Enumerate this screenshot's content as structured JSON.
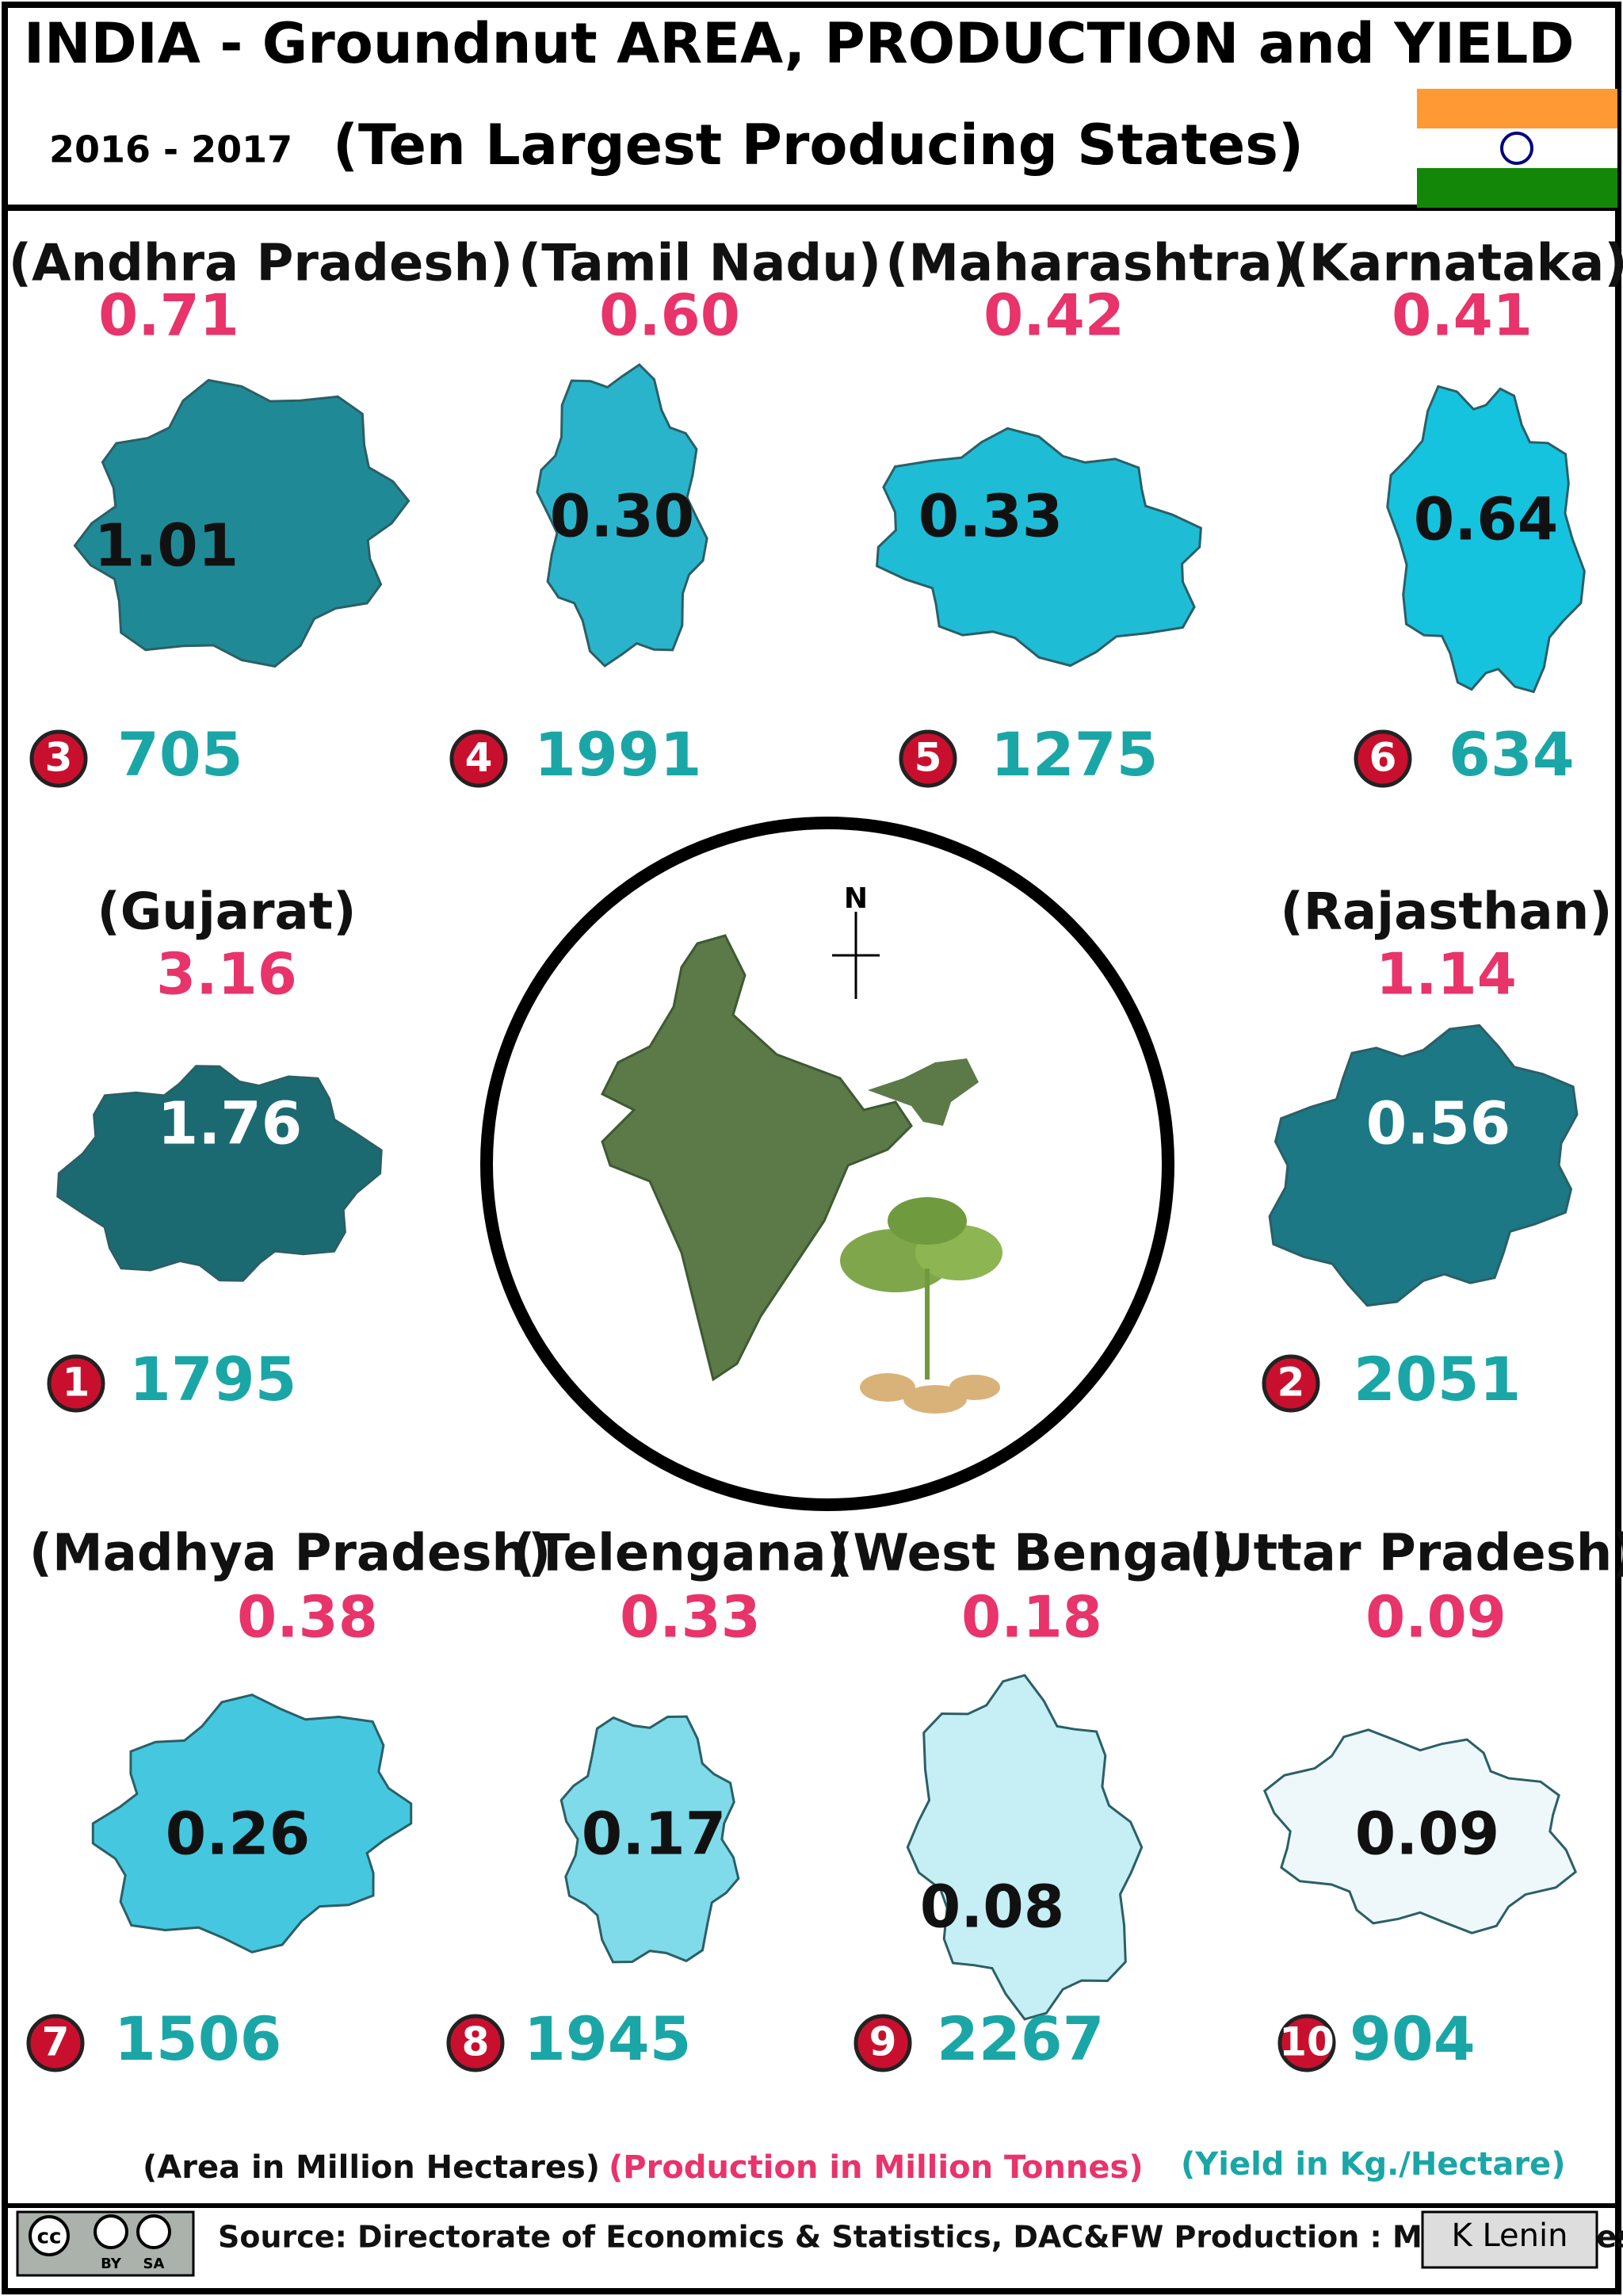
{
  "header": {
    "title": "INDIA - Groundnut   AREA, PRODUCTION and  YIELD",
    "period": "2016 - 2017",
    "subtitle": "(Ten Largest Producing States)"
  },
  "states": [
    {
      "name": "(Andhra Pradesh)",
      "production": "0.71",
      "area": "1.01",
      "rank": "3",
      "yield": "705"
    },
    {
      "name": "(Tamil Nadu)",
      "production": "0.60",
      "area": "0.30",
      "rank": "4",
      "yield": "1991"
    },
    {
      "name": "(Maharashtra)",
      "production": "0.42",
      "area": "0.33",
      "rank": "5",
      "yield": "1275"
    },
    {
      "name": "(Karnataka)",
      "production": "0.41",
      "area": "0.64",
      "rank": "6",
      "yield": "634"
    },
    {
      "name": "(Gujarat)",
      "production": "3.16",
      "area": "1.76",
      "rank": "1",
      "yield": "1795"
    },
    {
      "name": "(Rajasthan)",
      "production": "1.14",
      "area": "0.56",
      "rank": "2",
      "yield": "2051"
    },
    {
      "name": "(Madhya Pradesh)",
      "production": "0.38",
      "area": "0.26",
      "rank": "7",
      "yield": "1506"
    },
    {
      "name": "(Telengana)",
      "production": "0.33",
      "area": "0.17",
      "rank": "8",
      "yield": "1945"
    },
    {
      "name": "(West Bengal)",
      "production": "0.18",
      "area": "0.08",
      "rank": "9",
      "yield": "2267"
    },
    {
      "name": "(Uttar  Pradesh)",
      "production": "0.09",
      "area": "0.09",
      "rank": "10",
      "yield": "904"
    }
  ],
  "compass": "N",
  "legend": {
    "area": "(Area in Million Hectares)",
    "production": "(Production in Million Tonnes)",
    "yield": "(Yield in Kg./Hectare)"
  },
  "footer": {
    "license": "cc",
    "license_by": "BY",
    "license_sa": "SA",
    "source": "Source: Directorate of Economics & Statistics, DAC&FW  Production : Million Tonnes",
    "author": "K Lenin"
  }
}
